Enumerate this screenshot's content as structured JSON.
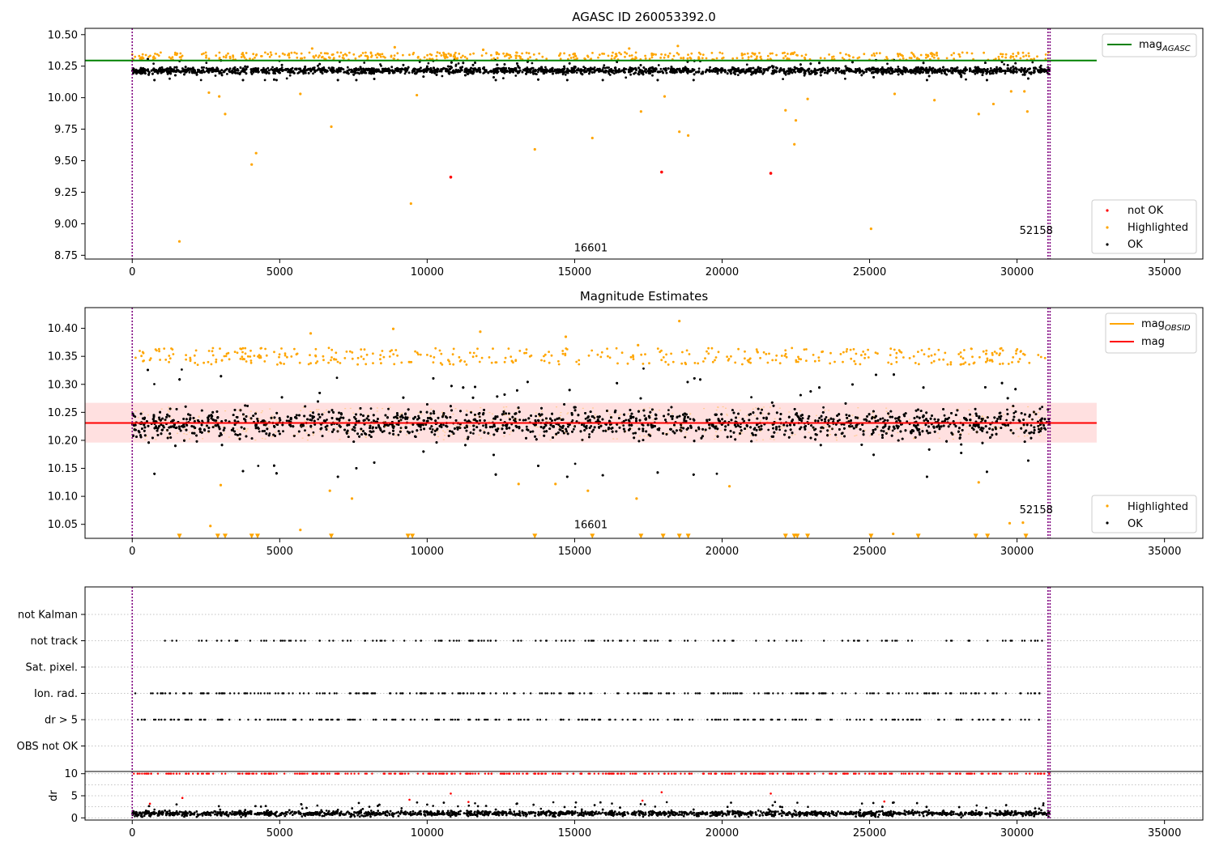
{
  "chart_data": [
    {
      "type": "scatter",
      "title": "AGASC ID 260053392.0",
      "xlabel": "",
      "ylabel": "",
      "xlim": [
        -1600,
        36300
      ],
      "ylim": [
        8.72,
        10.55
      ],
      "xticks": [
        0,
        5000,
        10000,
        15000,
        20000,
        25000,
        30000,
        35000
      ],
      "yticks": [
        8.75,
        9.0,
        9.25,
        9.5,
        9.75,
        10.0,
        10.25,
        10.5
      ],
      "ytick_labels": [
        "8.75",
        "9.00",
        "9.25",
        "9.50",
        "9.75",
        "10.00",
        "10.25",
        "10.50"
      ],
      "grid": false,
      "reference_line": {
        "label": "mag",
        "label_sub": "AGASC",
        "y": 10.295,
        "x_range": [
          -1600,
          32700
        ],
        "color": "#008000"
      },
      "obsid_boundaries": [
        0,
        31050,
        31120
      ],
      "annotations": [
        {
          "text": "16601",
          "x": 15550,
          "y": 8.78
        },
        {
          "text": "52158",
          "x": 30650,
          "y": 8.92
        }
      ],
      "legend": {
        "placement": "lower-right",
        "entries": [
          "not OK",
          "Highlighted",
          "OK"
        ]
      },
      "ok_band": {
        "range": [
          10.14,
          10.31
        ],
        "center": 10.215,
        "spread": 0.035
      },
      "series": [
        {
          "name": "not OK",
          "color": "#ff0000",
          "points": [
            [
              10800,
              9.37
            ],
            [
              17950,
              9.41
            ],
            [
              21650,
              9.4
            ]
          ]
        },
        {
          "name": "Highlighted",
          "color": "#ffa500",
          "points": [
            [
              1600,
              8.86
            ],
            [
              2600,
              10.04
            ],
            [
              2950,
              10.01
            ],
            [
              3150,
              9.87
            ],
            [
              4050,
              9.47
            ],
            [
              4200,
              9.56
            ],
            [
              5700,
              10.03
            ],
            [
              6750,
              9.77
            ],
            [
              9450,
              9.16
            ],
            [
              9650,
              10.02
            ],
            [
              13650,
              9.59
            ],
            [
              15600,
              9.68
            ],
            [
              17250,
              9.89
            ],
            [
              18050,
              10.01
            ],
            [
              18550,
              9.73
            ],
            [
              18850,
              9.7
            ],
            [
              22150,
              9.9
            ],
            [
              22500,
              9.82
            ],
            [
              22450,
              9.63
            ],
            [
              22900,
              9.99
            ],
            [
              25050,
              8.96
            ],
            [
              25850,
              10.03
            ],
            [
              27200,
              9.98
            ],
            [
              28700,
              9.87
            ],
            [
              29200,
              9.95
            ],
            [
              29800,
              10.05
            ],
            [
              30350,
              9.89
            ],
            [
              30250,
              10.05
            ],
            [
              18500,
              10.41
            ],
            [
              8900,
              10.4
            ],
            [
              6100,
              10.39
            ],
            [
              11900,
              10.38
            ],
            [
              16850,
              10.39
            ]
          ]
        },
        {
          "name": "OK",
          "color": "#000000"
        }
      ]
    },
    {
      "type": "scatter",
      "title": "Magnitude Estimates",
      "xlabel": "",
      "ylabel": "",
      "xlim": [
        -1600,
        36300
      ],
      "ylim": [
        10.025,
        10.437
      ],
      "xticks": [
        0,
        5000,
        10000,
        15000,
        20000,
        25000,
        30000,
        35000
      ],
      "yticks": [
        10.05,
        10.1,
        10.15,
        10.2,
        10.25,
        10.3,
        10.35,
        10.4
      ],
      "ytick_labels": [
        "10.05",
        "10.10",
        "10.15",
        "10.20",
        "10.25",
        "10.30",
        "10.35",
        "10.40"
      ],
      "grid": false,
      "mean_mag": {
        "label": "mag",
        "y": 10.231,
        "band": [
          10.196,
          10.267
        ],
        "x_range": [
          -1600,
          32700
        ],
        "color": "#ff0000"
      },
      "obsid_mag": {
        "label": "mag",
        "label_sub": "OBSID",
        "color": "#ffa500"
      },
      "obsid_boundaries": [
        0,
        31050,
        31120
      ],
      "annotations": [
        {
          "text": "16601",
          "x": 15550,
          "y": 10.043
        },
        {
          "text": "52158",
          "x": 30650,
          "y": 10.07
        }
      ],
      "legend_top": {
        "placement": "upper-right",
        "entries": [
          "mag OBSID",
          "mag"
        ]
      },
      "legend_bottom": {
        "placement": "lower-right",
        "entries": [
          "Highlighted",
          "OK"
        ]
      },
      "ok_band": {
        "range": [
          10.135,
          10.33
        ],
        "center": 10.23,
        "spread": 0.035
      },
      "series": [
        {
          "name": "Highlighted",
          "color": "#ffa500",
          "points": [
            [
              2650,
              10.047
            ],
            [
              3000,
              10.12
            ],
            [
              5700,
              10.04
            ],
            [
              6700,
              10.11
            ],
            [
              7450,
              10.096
            ],
            [
              13100,
              10.122
            ],
            [
              14350,
              10.122
            ],
            [
              15450,
              10.11
            ],
            [
              17100,
              10.096
            ],
            [
              20250,
              10.118
            ],
            [
              25800,
              10.033
            ],
            [
              28700,
              10.125
            ],
            [
              29750,
              10.052
            ],
            [
              30200,
              10.053
            ],
            [
              18550,
              10.413
            ],
            [
              8850,
              10.399
            ],
            [
              6050,
              10.391
            ],
            [
              11800,
              10.394
            ],
            [
              17150,
              10.37
            ],
            [
              14700,
              10.385
            ]
          ]
        },
        {
          "name": "OK",
          "color": "#000000"
        }
      ],
      "offscale_markers": {
        "y": 10.029,
        "color": "#ffa500",
        "x": [
          1600,
          2900,
          3150,
          4050,
          4250,
          6750,
          9350,
          9500,
          13650,
          15600,
          17250,
          18000,
          18550,
          18850,
          22150,
          22450,
          22550,
          22900,
          25050,
          26650,
          28600,
          29000,
          30300
        ]
      }
    },
    {
      "type": "scatter",
      "title": "",
      "xlabel": "",
      "ylabel": "",
      "xlim": [
        -1600,
        36300
      ],
      "xticks": [
        0,
        5000,
        10000,
        15000,
        20000,
        25000,
        30000,
        35000
      ],
      "categories": [
        "not Kalman",
        "not track",
        "Sat. pixel.",
        "Ion. rad.",
        "dr > 5",
        "OBS not OK"
      ],
      "grid": true,
      "flag_density": {
        "not Kalman": 0,
        "not track": 150,
        "Sat. pixel.": 0,
        "Ion. rad.": 260,
        "dr > 5": 240,
        "OBS not OK": 0
      },
      "flag_start_x": {
        "not track": 900,
        "Ion. rad.": 100,
        "dr > 5": 100
      }
    },
    {
      "type": "scatter",
      "title": "",
      "xlabel": "",
      "ylabel": "dr",
      "xlim": [
        -1600,
        36300
      ],
      "ylim": [
        -0.5,
        10.5
      ],
      "xticks": [
        0,
        5000,
        10000,
        15000,
        20000,
        25000,
        30000,
        35000
      ],
      "yticks": [
        0,
        5,
        10
      ],
      "grid": true,
      "clipped_at": 10,
      "series": [
        {
          "name": "dr",
          "color": "#000000",
          "center": 1.0,
          "spread": 0.5
        },
        {
          "name": "dr > 5",
          "color": "#ff0000",
          "points": [
            [
              10800,
              5.5
            ],
            [
              17950,
              5.8
            ],
            [
              21650,
              5.5
            ],
            [
              600,
              3.2
            ],
            [
              1700,
              4.5
            ],
            [
              9400,
              4.1
            ],
            [
              11400,
              3.6
            ],
            [
              17300,
              3.9
            ],
            [
              25500,
              3.7
            ]
          ]
        }
      ]
    }
  ]
}
